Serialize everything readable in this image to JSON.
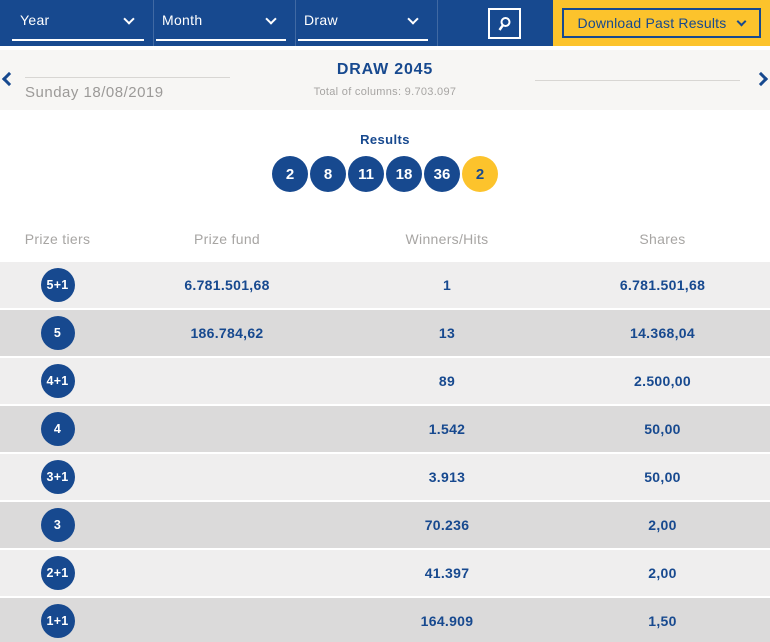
{
  "topbar": {
    "filters": [
      {
        "name": "year",
        "label": "Year"
      },
      {
        "name": "month",
        "label": "Month"
      },
      {
        "name": "draw",
        "label": "Draw"
      }
    ],
    "download_label": "Download Past Results"
  },
  "draw_header": {
    "date": "Sunday 18/08/2019",
    "title": "DRAW 2045",
    "total_label": "Total of columns: 9.703.097"
  },
  "results": {
    "label": "Results",
    "numbers": [
      {
        "value": "2",
        "type": "main"
      },
      {
        "value": "8",
        "type": "main"
      },
      {
        "value": "11",
        "type": "main"
      },
      {
        "value": "18",
        "type": "main"
      },
      {
        "value": "36",
        "type": "main"
      },
      {
        "value": "2",
        "type": "bonus"
      }
    ]
  },
  "prize_table": {
    "headers": [
      "Prize tiers",
      "Prize fund",
      "Winners/Hits",
      "Shares"
    ],
    "rows": [
      {
        "tier": "5+1",
        "prize_fund": "6.781.501,68",
        "winners": "1",
        "shares": "6.781.501,68"
      },
      {
        "tier": "5",
        "prize_fund": "186.784,62",
        "winners": "13",
        "shares": "14.368,04"
      },
      {
        "tier": "4+1",
        "prize_fund": "",
        "winners": "89",
        "shares": "2.500,00"
      },
      {
        "tier": "4",
        "prize_fund": "",
        "winners": "1.542",
        "shares": "50,00"
      },
      {
        "tier": "3+1",
        "prize_fund": "",
        "winners": "3.913",
        "shares": "50,00"
      },
      {
        "tier": "3",
        "prize_fund": "",
        "winners": "70.236",
        "shares": "2,00"
      },
      {
        "tier": "2+1",
        "prize_fund": "",
        "winners": "41.397",
        "shares": "2,00"
      },
      {
        "tier": "1+1",
        "prize_fund": "",
        "winners": "164.909",
        "shares": "1,50"
      }
    ]
  },
  "colors": {
    "primary_blue": "#17498F",
    "accent_yellow": "#FCC32C",
    "band_gray": "#F7F6F4",
    "row_light": "#EFEEEE",
    "row_dark": "#DBDADA"
  }
}
